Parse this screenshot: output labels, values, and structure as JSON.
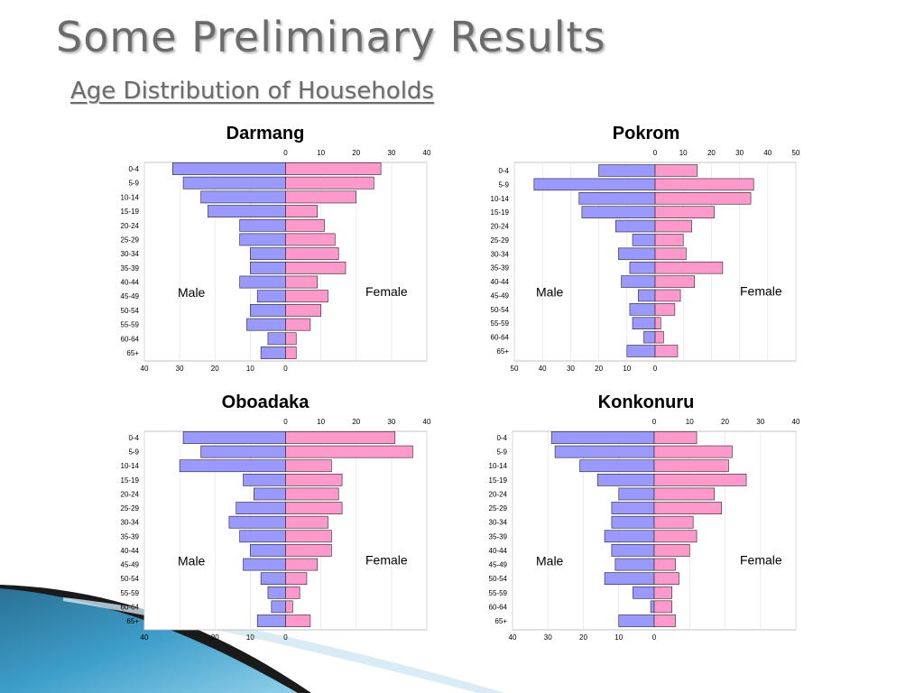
{
  "slide": {
    "title": "Some Preliminary Results",
    "subtitle": "Age Distribution of Households"
  },
  "colors": {
    "male": "#9999ff",
    "female": "#ff99cc",
    "title_text": "#6b6b6b"
  },
  "chart_data": [
    {
      "type": "bar",
      "orientation": "horizontal-population-pyramid",
      "title": "Darmang",
      "categories": [
        "0-4",
        "5-9",
        "10-14",
        "15-19",
        "20-24",
        "25-29",
        "30-34",
        "35-39",
        "40-44",
        "45-49",
        "50-54",
        "55-59",
        "60-64",
        "65+"
      ],
      "series": [
        {
          "name": "Male",
          "values": [
            32,
            29,
            24,
            22,
            13,
            13,
            10,
            10,
            13,
            8,
            10,
            11,
            5,
            7
          ]
        },
        {
          "name": "Female",
          "values": [
            27,
            25,
            20,
            9,
            11,
            14,
            15,
            17,
            9,
            12,
            10,
            7,
            3,
            3
          ]
        }
      ],
      "top_ticks": [
        "0",
        "10",
        "20",
        "30",
        "40"
      ],
      "bottom_ticks": [
        "40",
        "30",
        "20",
        "10",
        "0"
      ],
      "xlim": [
        -40,
        40
      ],
      "grid": true
    },
    {
      "type": "bar",
      "orientation": "horizontal-population-pyramid",
      "title": "Pokrom",
      "categories": [
        "0-4",
        "5-9",
        "10-14",
        "15-19",
        "20-24",
        "25-29",
        "30-34",
        "35-39",
        "40-44",
        "45-49",
        "50-54",
        "55-59",
        "60-64",
        "65+"
      ],
      "series": [
        {
          "name": "Male",
          "values": [
            20,
            43,
            27,
            26,
            14,
            8,
            13,
            9,
            12,
            6,
            9,
            8,
            4,
            10
          ]
        },
        {
          "name": "Female",
          "values": [
            15,
            35,
            34,
            21,
            13,
            10,
            11,
            24,
            14,
            9,
            7,
            2,
            3,
            8
          ]
        }
      ],
      "top_ticks": [
        "0",
        "10",
        "20",
        "30",
        "40",
        "50"
      ],
      "bottom_ticks": [
        "50",
        "40",
        "30",
        "20",
        "10",
        "0"
      ],
      "xlim": [
        -50,
        50
      ],
      "grid": true
    },
    {
      "type": "bar",
      "orientation": "horizontal-population-pyramid",
      "title": "Oboadaka",
      "categories": [
        "0-4",
        "5-9",
        "10-14",
        "15-19",
        "20-24",
        "25-29",
        "30-34",
        "35-39",
        "40-44",
        "45-49",
        "50-54",
        "55-59",
        "60-64",
        "65+"
      ],
      "series": [
        {
          "name": "Male",
          "values": [
            29,
            24,
            30,
            12,
            9,
            14,
            16,
            13,
            10,
            12,
            7,
            5,
            4,
            8
          ]
        },
        {
          "name": "Female",
          "values": [
            31,
            36,
            13,
            16,
            15,
            16,
            12,
            13,
            13,
            9,
            6,
            4,
            2,
            7
          ]
        }
      ],
      "top_ticks": [
        "0",
        "10",
        "20",
        "30",
        "40"
      ],
      "bottom_ticks": [
        "40",
        "",
        "20",
        "10",
        "0"
      ],
      "xlim": [
        -40,
        40
      ],
      "grid": true
    },
    {
      "type": "bar",
      "orientation": "horizontal-population-pyramid",
      "title": "Konkonuru",
      "categories": [
        "0-4",
        "5-9",
        "10-14",
        "15-19",
        "20-24",
        "25-29",
        "30-34",
        "35-39",
        "40-44",
        "45-49",
        "50-54",
        "55-59",
        "60-64",
        "65+"
      ],
      "series": [
        {
          "name": "Male",
          "values": [
            29,
            28,
            21,
            16,
            10,
            12,
            12,
            14,
            12,
            11,
            14,
            6,
            1,
            10
          ]
        },
        {
          "name": "Female",
          "values": [
            12,
            22,
            21,
            26,
            17,
            19,
            11,
            12,
            10,
            6,
            7,
            5,
            5,
            6
          ]
        }
      ],
      "top_ticks": [
        "0",
        "10",
        "20",
        "30",
        "40"
      ],
      "bottom_ticks": [
        "40",
        "30",
        "20",
        "10",
        "0"
      ],
      "xlim": [
        -40,
        40
      ],
      "grid": true
    }
  ]
}
